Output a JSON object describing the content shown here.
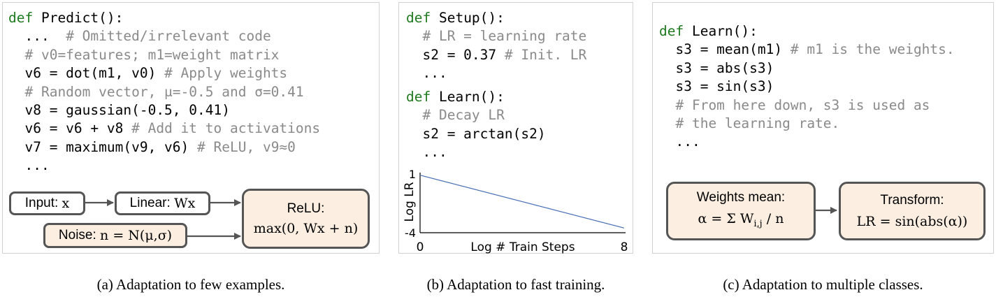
{
  "panel_a": {
    "code": [
      [
        {
          "t": "def ",
          "c": "kw"
        },
        {
          "t": "Predict():",
          "c": "nm"
        }
      ],
      [
        {
          "t": "  ...  ",
          "c": "st"
        },
        {
          "t": "# Omitted/irrelevant code",
          "c": "cm"
        }
      ],
      [
        {
          "t": "  # v0=features; m1=weight matrix",
          "c": "cm"
        }
      ],
      [
        {
          "t": "  v6 = dot(m1, v0) ",
          "c": "st"
        },
        {
          "t": "# Apply weights",
          "c": "cm"
        }
      ],
      [
        {
          "t": "  # Random vector, μ=-0.5 and σ=0.41",
          "c": "cm"
        }
      ],
      [
        {
          "t": "  v8 = gaussian(-0.5, 0.41)",
          "c": "st"
        }
      ],
      [
        {
          "t": "  v6 = v6 + v8 ",
          "c": "st"
        },
        {
          "t": "# Add it to activations",
          "c": "cm"
        }
      ],
      [
        {
          "t": "  v7 = maximum(v9, v6) ",
          "c": "st"
        },
        {
          "t": "# ReLU, v9≈0",
          "c": "cm"
        }
      ],
      [
        {
          "t": "  ...",
          "c": "st"
        }
      ]
    ],
    "diagram": {
      "input_label": "Input: ",
      "input_var": "x",
      "linear_label": "Linear: ",
      "linear_var": "Wx",
      "noise_label": "Noise: ",
      "noise_var": "n = N(μ,σ)",
      "relu_title": "ReLU:",
      "relu_expr": "max(0, Wx + n)"
    },
    "caption": "(a) Adaptation to few examples."
  },
  "panel_b": {
    "code_setup": [
      [
        {
          "t": "def ",
          "c": "kw"
        },
        {
          "t": "Setup():",
          "c": "nm"
        }
      ],
      [
        {
          "t": "  # LR = learning rate",
          "c": "cm"
        }
      ],
      [
        {
          "t": "  s2 = 0.37 ",
          "c": "st"
        },
        {
          "t": "# Init. LR",
          "c": "cm"
        }
      ],
      [
        {
          "t": "  ...",
          "c": "st"
        }
      ]
    ],
    "code_learn": [
      [
        {
          "t": "def ",
          "c": "kw"
        },
        {
          "t": "Learn():",
          "c": "nm"
        }
      ],
      [
        {
          "t": "  # Decay LR",
          "c": "cm"
        }
      ],
      [
        {
          "t": "  s2 = arctan(s2)",
          "c": "st"
        }
      ],
      [
        {
          "t": "  ...",
          "c": "st"
        }
      ]
    ],
    "caption": "(b) Adaptation to fast training."
  },
  "chart_data": {
    "type": "line",
    "title": "",
    "xlabel": "Log # Train Steps",
    "ylabel": "Log LR",
    "xlim": [
      0,
      8
    ],
    "ylim": [
      -4,
      1
    ],
    "xticks": [
      "0",
      "8"
    ],
    "yticks": [
      "1",
      "-4"
    ],
    "grid": false,
    "color": "#4a6fb5",
    "series": [
      {
        "x": [
          0,
          8
        ],
        "y": [
          0.9,
          -3.6
        ]
      }
    ]
  },
  "panel_c": {
    "code": [
      [
        {
          "t": "def ",
          "c": "kw"
        },
        {
          "t": "Learn():",
          "c": "nm"
        }
      ],
      [
        {
          "t": "  s3 = mean(m1) ",
          "c": "st"
        },
        {
          "t": "# m1 is the weights.",
          "c": "cm"
        }
      ],
      [
        {
          "t": "  s3 = abs(s3)",
          "c": "st"
        }
      ],
      [
        {
          "t": "  s3 = sin(s3)",
          "c": "st"
        }
      ],
      [
        {
          "t": "  # From here down, s3 is used as",
          "c": "cm"
        }
      ],
      [
        {
          "t": "  # the learning rate.",
          "c": "cm"
        }
      ],
      [
        {
          "t": "  ...",
          "c": "st"
        }
      ]
    ],
    "diagram": {
      "mean_title": "Weights mean:",
      "mean_expr_pre": "α = Σ W",
      "mean_sub": "i,j",
      "mean_expr_post": " / n",
      "transform_title": "Transform:",
      "transform_expr": "LR = sin(abs(α))"
    },
    "caption": "(c) Adaptation to multiple classes."
  },
  "colors": {
    "keyword": "#1f7a1f",
    "comment": "#8a8a8a",
    "box_fill": "#fcefe2",
    "box_border": "#555555",
    "panel_border": "#d2d2d2",
    "line": "#4a6fb5"
  }
}
